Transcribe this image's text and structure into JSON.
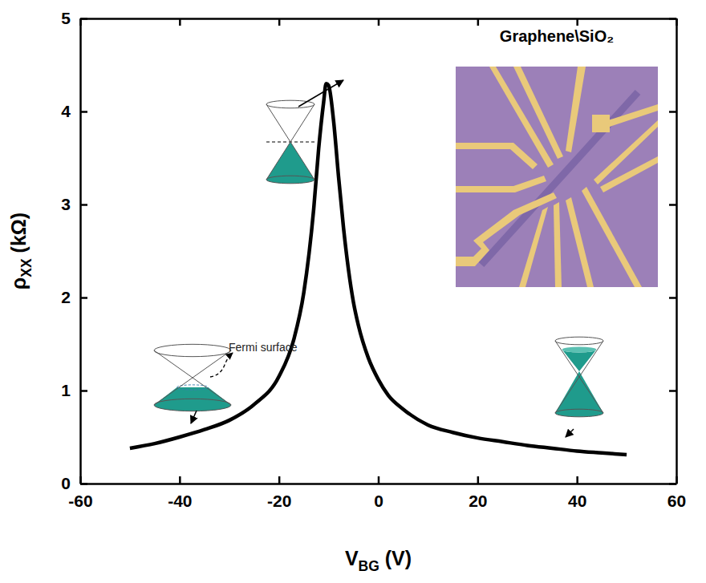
{
  "chart_data": {
    "type": "line",
    "x_label": "VBG (V)",
    "y_label": "ρXX (kΩ)",
    "xlim": [
      -60,
      60
    ],
    "xticks": [
      -60,
      -40,
      -20,
      0,
      20,
      40,
      60
    ],
    "ylim": [
      0,
      5
    ],
    "yticks": [
      0,
      1,
      2,
      3,
      4,
      5
    ],
    "grid": false,
    "x": [
      -50,
      -45,
      -40,
      -35,
      -30,
      -25,
      -20,
      -17,
      -15,
      -13,
      -12,
      -11,
      -10.5,
      -10,
      -9,
      -8,
      -7,
      -6,
      -5,
      -4,
      -2,
      0,
      2,
      5,
      10,
      15,
      20,
      25,
      30,
      35,
      40,
      45,
      50
    ],
    "series": [
      {
        "color": "#000000",
        "values": [
          0.38,
          0.43,
          0.5,
          0.58,
          0.68,
          0.85,
          1.15,
          1.55,
          2.05,
          2.95,
          3.6,
          4.1,
          4.3,
          4.28,
          3.9,
          3.3,
          2.75,
          2.3,
          1.95,
          1.7,
          1.35,
          1.12,
          0.95,
          0.8,
          0.63,
          0.55,
          0.49,
          0.45,
          0.41,
          0.38,
          0.35,
          0.33,
          0.31
        ]
      }
    ],
    "annotations": [
      {
        "text": "Graphene\\SiO₂"
      },
      {
        "text": "Fermi surface"
      }
    ]
  }
}
